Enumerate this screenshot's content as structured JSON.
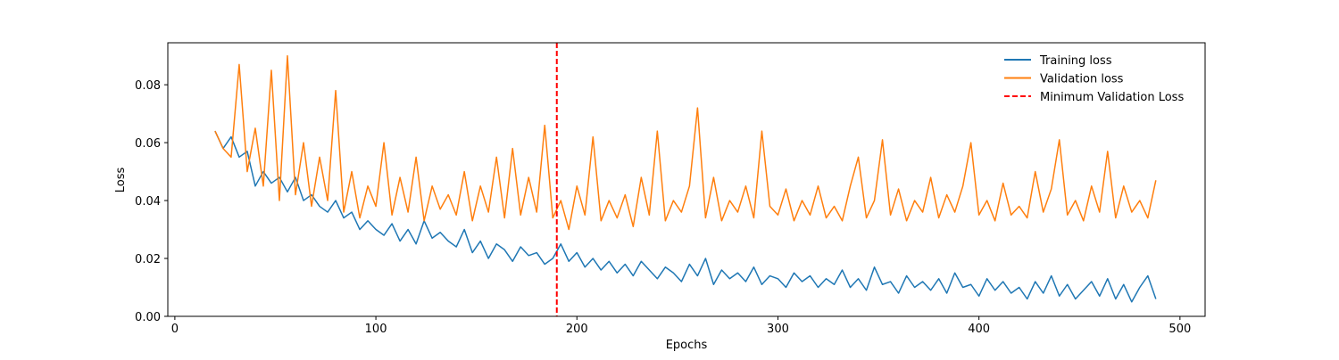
{
  "chart_data": {
    "type": "line",
    "xlabel": "Epochs",
    "ylabel": "Loss",
    "xlim": [
      -3.5,
      512.5
    ],
    "ylim": [
      0,
      0.0945
    ],
    "xticks": [
      0,
      100,
      200,
      300,
      400,
      500
    ],
    "yticks": [
      {
        "value": 0,
        "label": "0.00"
      },
      0.02,
      0.04,
      0.06,
      0.08
    ],
    "legend": "upper right",
    "x": [
      20,
      24,
      28,
      32,
      36,
      40,
      44,
      48,
      52,
      56,
      60,
      64,
      68,
      72,
      76,
      80,
      84,
      88,
      92,
      96,
      100,
      104,
      108,
      112,
      116,
      120,
      124,
      128,
      132,
      136,
      140,
      144,
      148,
      152,
      156,
      160,
      164,
      168,
      172,
      176,
      180,
      184,
      188,
      192,
      196,
      200,
      204,
      208,
      212,
      216,
      220,
      224,
      228,
      232,
      236,
      240,
      244,
      248,
      252,
      256,
      260,
      264,
      268,
      272,
      276,
      280,
      284,
      288,
      292,
      296,
      300,
      304,
      308,
      312,
      316,
      320,
      324,
      328,
      332,
      336,
      340,
      344,
      348,
      352,
      356,
      360,
      364,
      368,
      372,
      376,
      380,
      384,
      388,
      392,
      396,
      400,
      404,
      408,
      412,
      416,
      420,
      424,
      428,
      432,
      436,
      440,
      444,
      448,
      452,
      456,
      460,
      464,
      468,
      472,
      476,
      480,
      484,
      488
    ],
    "series": [
      {
        "name": "Training loss",
        "color": "#1f77b4",
        "values": [
          0.064,
          0.058,
          0.062,
          0.055,
          0.057,
          0.045,
          0.05,
          0.046,
          0.048,
          0.043,
          0.048,
          0.04,
          0.042,
          0.038,
          0.036,
          0.04,
          0.034,
          0.036,
          0.03,
          0.033,
          0.03,
          0.028,
          0.032,
          0.026,
          0.03,
          0.025,
          0.033,
          0.027,
          0.029,
          0.026,
          0.024,
          0.03,
          0.022,
          0.026,
          0.02,
          0.025,
          0.023,
          0.019,
          0.024,
          0.021,
          0.022,
          0.018,
          0.02,
          0.025,
          0.019,
          0.022,
          0.017,
          0.02,
          0.016,
          0.019,
          0.015,
          0.018,
          0.014,
          0.019,
          0.016,
          0.013,
          0.017,
          0.015,
          0.012,
          0.018,
          0.014,
          0.02,
          0.011,
          0.016,
          0.013,
          0.015,
          0.012,
          0.017,
          0.011,
          0.014,
          0.013,
          0.01,
          0.015,
          0.012,
          0.014,
          0.01,
          0.013,
          0.011,
          0.016,
          0.01,
          0.013,
          0.009,
          0.017,
          0.011,
          0.012,
          0.008,
          0.014,
          0.01,
          0.012,
          0.009,
          0.013,
          0.008,
          0.015,
          0.01,
          0.011,
          0.007,
          0.013,
          0.009,
          0.012,
          0.008,
          0.01,
          0.006,
          0.012,
          0.008,
          0.014,
          0.007,
          0.011,
          0.006,
          0.009,
          0.012,
          0.007,
          0.013,
          0.006,
          0.011,
          0.005,
          0.01,
          0.014,
          0.006
        ]
      },
      {
        "name": "Validation loss",
        "color": "#ff7f0e",
        "values": [
          0.064,
          0.058,
          0.055,
          0.087,
          0.05,
          0.065,
          0.045,
          0.085,
          0.04,
          0.09,
          0.042,
          0.06,
          0.038,
          0.055,
          0.04,
          0.078,
          0.036,
          0.05,
          0.034,
          0.045,
          0.038,
          0.06,
          0.035,
          0.048,
          0.036,
          0.055,
          0.033,
          0.045,
          0.037,
          0.042,
          0.035,
          0.05,
          0.033,
          0.045,
          0.036,
          0.055,
          0.034,
          0.058,
          0.035,
          0.048,
          0.036,
          0.066,
          0.034,
          0.04,
          0.03,
          0.045,
          0.035,
          0.062,
          0.033,
          0.04,
          0.034,
          0.042,
          0.031,
          0.048,
          0.035,
          0.064,
          0.033,
          0.04,
          0.036,
          0.045,
          0.072,
          0.034,
          0.048,
          0.033,
          0.04,
          0.036,
          0.045,
          0.034,
          0.064,
          0.038,
          0.035,
          0.044,
          0.033,
          0.04,
          0.035,
          0.045,
          0.034,
          0.038,
          0.033,
          0.045,
          0.055,
          0.034,
          0.04,
          0.061,
          0.035,
          0.044,
          0.033,
          0.04,
          0.036,
          0.048,
          0.034,
          0.042,
          0.036,
          0.045,
          0.06,
          0.035,
          0.04,
          0.033,
          0.046,
          0.035,
          0.038,
          0.034,
          0.05,
          0.036,
          0.044,
          0.061,
          0.035,
          0.04,
          0.033,
          0.045,
          0.036,
          0.057,
          0.034,
          0.045,
          0.036,
          0.04,
          0.034,
          0.047
        ]
      }
    ],
    "vline": {
      "x": 190,
      "name": "Minimum Validation Loss",
      "color": "#ff0000"
    }
  }
}
